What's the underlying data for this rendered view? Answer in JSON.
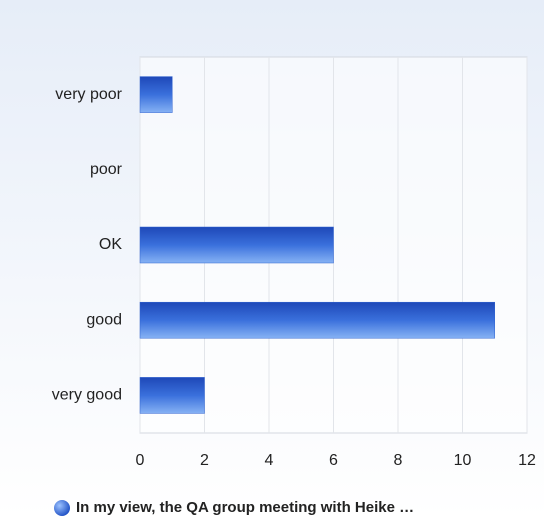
{
  "chart_data": {
    "type": "bar",
    "orientation": "horizontal",
    "categories": [
      "very poor",
      "poor",
      "OK",
      "good",
      "very good"
    ],
    "series": [
      {
        "name": "In my view, the QA group meeting with Heike …",
        "color": "#2f62d0",
        "values": [
          1,
          0,
          6,
          11,
          2
        ]
      }
    ],
    "xlim": [
      0,
      12
    ],
    "xticks": [
      0,
      2,
      4,
      6,
      8,
      10,
      12
    ],
    "grid": true
  }
}
